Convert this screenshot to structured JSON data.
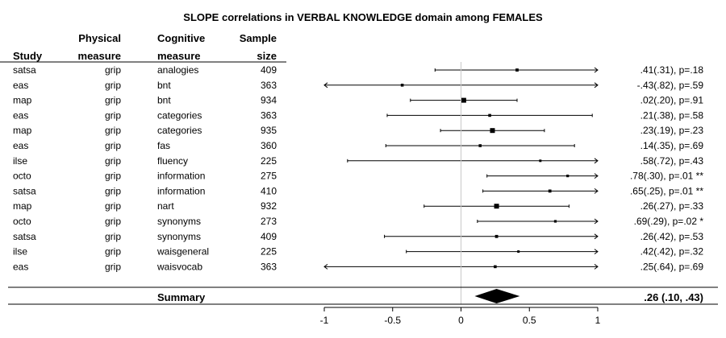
{
  "chart_data": {
    "type": "forest",
    "title": "SLOPE correlations in VERBAL KNOWLEDGE domain among FEMALES",
    "columns": [
      [
        "",
        "Study"
      ],
      [
        "Physical",
        "measure"
      ],
      [
        "Cognitive",
        "measure"
      ],
      [
        "Sample",
        "size"
      ]
    ],
    "xlim": [
      -1,
      1
    ],
    "x_ticks": [
      -1,
      -0.5,
      0,
      0.5,
      1
    ],
    "x_tick_labels": [
      "-1",
      "-0.5",
      "0",
      "0.5",
      "1"
    ],
    "rows": [
      {
        "study": "satsa",
        "physical": "grip",
        "cognitive": "analogies",
        "n": "409",
        "est": 0.41,
        "lo": -0.19,
        "hi": 1.0,
        "arrow_lo": false,
        "arrow_hi": true,
        "label": ".41(.31), p=.18"
      },
      {
        "study": "eas",
        "physical": "grip",
        "cognitive": "bnt",
        "n": "363",
        "est": -0.43,
        "lo": -1.0,
        "hi": 1.0,
        "arrow_lo": true,
        "arrow_hi": true,
        "label": "-.43(.82), p=.59"
      },
      {
        "study": "map",
        "physical": "grip",
        "cognitive": "bnt",
        "n": "934",
        "est": 0.02,
        "lo": -0.37,
        "hi": 0.41,
        "arrow_lo": false,
        "arrow_hi": false,
        "label": ".02(.20), p=.91"
      },
      {
        "study": "eas",
        "physical": "grip",
        "cognitive": "categories",
        "n": "363",
        "est": 0.21,
        "lo": -0.54,
        "hi": 0.96,
        "arrow_lo": false,
        "arrow_hi": false,
        "label": ".21(.38), p=.58"
      },
      {
        "study": "map",
        "physical": "grip",
        "cognitive": "categories",
        "n": "935",
        "est": 0.23,
        "lo": -0.15,
        "hi": 0.61,
        "arrow_lo": false,
        "arrow_hi": false,
        "label": ".23(.19), p=.23"
      },
      {
        "study": "eas",
        "physical": "grip",
        "cognitive": "fas",
        "n": "360",
        "est": 0.14,
        "lo": -0.55,
        "hi": 0.83,
        "arrow_lo": false,
        "arrow_hi": false,
        "label": ".14(.35), p=.69"
      },
      {
        "study": "ilse",
        "physical": "grip",
        "cognitive": "fluency",
        "n": "225",
        "est": 0.58,
        "lo": -0.83,
        "hi": 1.0,
        "arrow_lo": false,
        "arrow_hi": true,
        "label": ".58(.72), p=.43"
      },
      {
        "study": "octo",
        "physical": "grip",
        "cognitive": "information",
        "n": "275",
        "est": 0.78,
        "lo": 0.19,
        "hi": 1.0,
        "arrow_lo": false,
        "arrow_hi": true,
        "label": ".78(.30), p=.01 **"
      },
      {
        "study": "satsa",
        "physical": "grip",
        "cognitive": "information",
        "n": "410",
        "est": 0.65,
        "lo": 0.16,
        "hi": 1.0,
        "arrow_lo": false,
        "arrow_hi": true,
        "label": ".65(.25), p=.01 **"
      },
      {
        "study": "map",
        "physical": "grip",
        "cognitive": "nart",
        "n": "932",
        "est": 0.26,
        "lo": -0.27,
        "hi": 0.79,
        "arrow_lo": false,
        "arrow_hi": false,
        "label": ".26(.27), p=.33"
      },
      {
        "study": "octo",
        "physical": "grip",
        "cognitive": "synonyms",
        "n": "273",
        "est": 0.69,
        "lo": 0.12,
        "hi": 1.0,
        "arrow_lo": false,
        "arrow_hi": true,
        "label": ".69(.29), p=.02 *"
      },
      {
        "study": "satsa",
        "physical": "grip",
        "cognitive": "synonyms",
        "n": "409",
        "est": 0.26,
        "lo": -0.56,
        "hi": 1.0,
        "arrow_lo": false,
        "arrow_hi": true,
        "label": ".26(.42), p=.53"
      },
      {
        "study": "ilse",
        "physical": "grip",
        "cognitive": "waisgeneral",
        "n": "225",
        "est": 0.42,
        "lo": -0.4,
        "hi": 1.0,
        "arrow_lo": false,
        "arrow_hi": true,
        "label": ".42(.42), p=.32"
      },
      {
        "study": "eas",
        "physical": "grip",
        "cognitive": "waisvocab",
        "n": "363",
        "est": 0.25,
        "lo": -1.0,
        "hi": 1.0,
        "arrow_lo": true,
        "arrow_hi": true,
        "label": ".25(.64), p=.69"
      }
    ],
    "summary": {
      "label": "Summary",
      "est": 0.26,
      "lo": 0.1,
      "hi": 0.43,
      "value_label": ".26 (.10, .43)"
    },
    "grid": false
  }
}
